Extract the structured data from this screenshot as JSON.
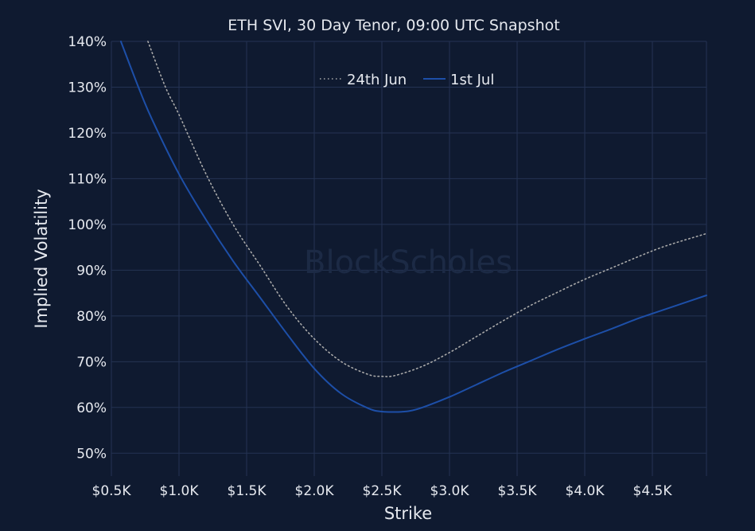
{
  "chart_data": {
    "type": "line",
    "title": "ETH SVI, 30 Day Tenor, 09:00 UTC Snapshot",
    "xlabel": "Strike",
    "ylabel": "Implied Volatility",
    "watermark": "BlockScholes",
    "xlim": [
      500,
      4900
    ],
    "ylim": [
      45,
      140
    ],
    "x_ticks": [
      500,
      1000,
      1500,
      2000,
      2500,
      3000,
      3500,
      4000,
      4500
    ],
    "x_tick_labels": [
      "$0.5K",
      "$1.0K",
      "$1.5K",
      "$2.0K",
      "$2.5K",
      "$3.0K",
      "$3.5K",
      "$4.0K",
      "$4.5K"
    ],
    "y_ticks": [
      50,
      60,
      70,
      80,
      90,
      100,
      110,
      120,
      130,
      140
    ],
    "y_tick_labels": [
      "50%",
      "60%",
      "70%",
      "80%",
      "90%",
      "100%",
      "110%",
      "120%",
      "130%",
      "140%"
    ],
    "grid": true,
    "legend_position": "top-center",
    "series": [
      {
        "name": "24th Jun",
        "color": "#a9a9a9",
        "style": "dotted",
        "x": [
          770,
          900,
          1000,
          1200,
          1400,
          1600,
          1800,
          2000,
          2200,
          2400,
          2500,
          2600,
          2800,
          3000,
          3200,
          3400,
          3600,
          3800,
          4000,
          4200,
          4400,
          4600,
          4900
        ],
        "y": [
          140,
          130,
          124,
          111,
          100,
          91,
          82,
          75,
          70,
          67.2,
          66.8,
          67,
          69,
          72,
          75.5,
          79,
          82.3,
          85.2,
          88,
          90.5,
          93,
          95.3,
          98
        ]
      },
      {
        "name": "1st Jul",
        "color": "#1d4fa8",
        "style": "solid",
        "x": [
          570,
          700,
          800,
          1000,
          1200,
          1400,
          1600,
          1800,
          2000,
          2200,
          2400,
          2500,
          2600,
          2700,
          2800,
          3000,
          3200,
          3400,
          3600,
          3800,
          4000,
          4200,
          4400,
          4600,
          4900
        ],
        "y": [
          140,
          130,
          123,
          111,
          101,
          92,
          84,
          76,
          68.5,
          63,
          59.8,
          59.1,
          59,
          59.2,
          60,
          62.3,
          65,
          67.7,
          70.2,
          72.7,
          75,
          77.2,
          79.5,
          81.5,
          84.5
        ]
      }
    ]
  }
}
